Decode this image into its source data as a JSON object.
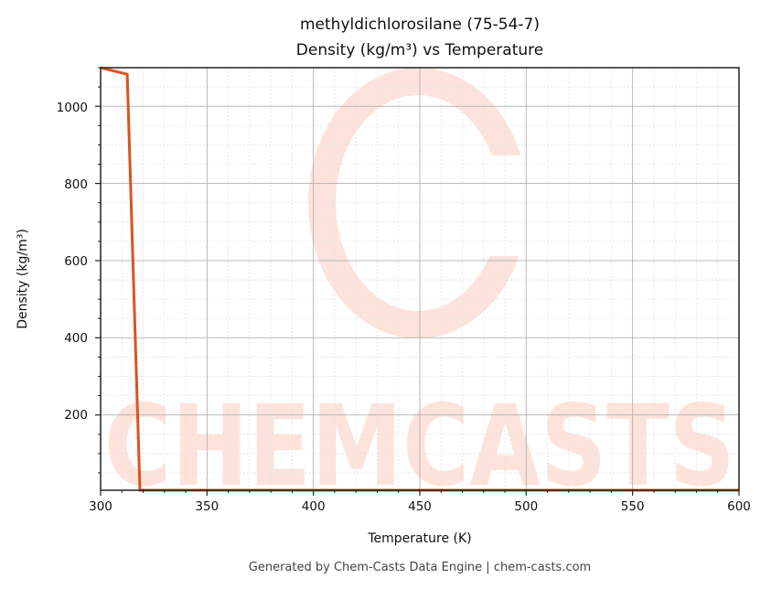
{
  "chart_data": {
    "type": "line",
    "title": "methyldichlorosilane (75-54-7)",
    "subtitle": "Density (kg/m³) vs Temperature",
    "xlabel": "Temperature (K)",
    "ylabel": "Density (kg/m³)",
    "xlim": [
      300,
      600
    ],
    "ylim": [
      5,
      1100
    ],
    "xticks": [
      300,
      350,
      400,
      450,
      500,
      550,
      600
    ],
    "yticks": [
      200,
      400,
      600,
      800,
      1000
    ],
    "grid": {
      "major": true,
      "minor": true
    },
    "legend": null,
    "series": [
      {
        "name": "Density",
        "color": "#d9541e",
        "x": [
          300,
          312.5,
          318.5,
          350,
          400,
          450,
          500,
          550,
          600
        ],
        "y": [
          1100,
          1083,
          5,
          5,
          5,
          5,
          5,
          5,
          5
        ]
      }
    ]
  },
  "watermark": {
    "text": "CHEMCASTS",
    "color": "#fde2da"
  },
  "footer": "Generated by Chem-Casts Data Engine | chem-casts.com",
  "title_line1": "methyldichlorosilane (75-54-7)",
  "title_line2": "Density (kg/m³) vs Temperature",
  "axes": {
    "xlabel": "Temperature (K)",
    "ylabel": "Density (kg/m³)",
    "xtick_labels": [
      "300",
      "350",
      "400",
      "450",
      "500",
      "550",
      "600"
    ],
    "ytick_labels": [
      "200",
      "400",
      "600",
      "800",
      "1000"
    ]
  }
}
